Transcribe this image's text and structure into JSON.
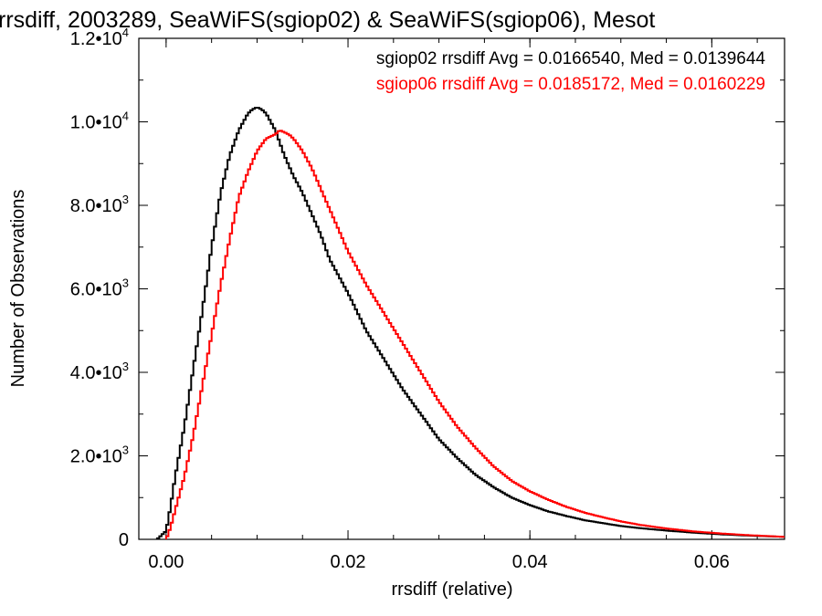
{
  "chart_data": {
    "type": "line",
    "title": "rrsdiff, 2003289, SeaWiFS(sgiop02) & SeaWiFS(sgiop06), Mesot",
    "xlabel": "rrsdiff (relative)",
    "ylabel": "Number of Observations",
    "xlim": [
      -0.003,
      0.068
    ],
    "ylim": [
      0,
      12000
    ],
    "x_ticks": [
      {
        "value": 0.0,
        "label": "0.00"
      },
      {
        "value": 0.02,
        "label": "0.02"
      },
      {
        "value": 0.04,
        "label": "0.04"
      },
      {
        "value": 0.06,
        "label": "0.06"
      }
    ],
    "y_ticks": [
      {
        "value": 0,
        "mant": "0",
        "exp": ""
      },
      {
        "value": 2000,
        "mant": "2.0•10",
        "exp": "3"
      },
      {
        "value": 4000,
        "mant": "4.0•10",
        "exp": "3"
      },
      {
        "value": 6000,
        "mant": "6.0•10",
        "exp": "3"
      },
      {
        "value": 8000,
        "mant": "8.0•10",
        "exp": "3"
      },
      {
        "value": 10000,
        "mant": "1.0•10",
        "exp": "4"
      },
      {
        "value": 12000,
        "mant": "1.2•10",
        "exp": "4"
      }
    ],
    "grid": false,
    "legend_position": "top-right",
    "series": [
      {
        "name": "sgiop02 rrsdiff Avg = 0.0166540, Med = 0.0139644",
        "color": "#000000",
        "x": [
          -0.001,
          0.0,
          0.0005,
          0.001,
          0.002,
          0.003,
          0.004,
          0.005,
          0.006,
          0.007,
          0.008,
          0.009,
          0.0095,
          0.01,
          0.0105,
          0.011,
          0.012,
          0.013,
          0.014,
          0.015,
          0.016,
          0.017,
          0.018,
          0.019,
          0.02,
          0.022,
          0.024,
          0.026,
          0.028,
          0.03,
          0.032,
          0.034,
          0.036,
          0.038,
          0.04,
          0.042,
          0.044,
          0.046,
          0.048,
          0.05,
          0.052,
          0.055,
          0.058,
          0.061,
          0.064,
          0.068
        ],
        "y": [
          0,
          200,
          800,
          1500,
          2700,
          4100,
          5500,
          7000,
          8300,
          9200,
          9800,
          10200,
          10300,
          10350,
          10300,
          10200,
          9800,
          9200,
          8700,
          8300,
          7800,
          7300,
          6700,
          6300,
          5900,
          5000,
          4300,
          3600,
          3000,
          2400,
          1950,
          1550,
          1250,
          1000,
          820,
          670,
          560,
          460,
          390,
          320,
          270,
          210,
          160,
          120,
          90,
          60
        ]
      },
      {
        "name": "sgiop06 rrsdiff Avg = 0.0185172, Med = 0.0160229",
        "color": "#ff0000",
        "x": [
          0.0,
          0.0005,
          0.001,
          0.002,
          0.003,
          0.004,
          0.005,
          0.006,
          0.007,
          0.008,
          0.009,
          0.01,
          0.011,
          0.012,
          0.0125,
          0.013,
          0.0135,
          0.014,
          0.015,
          0.016,
          0.017,
          0.018,
          0.019,
          0.02,
          0.021,
          0.022,
          0.024,
          0.026,
          0.028,
          0.03,
          0.032,
          0.034,
          0.036,
          0.038,
          0.04,
          0.042,
          0.044,
          0.046,
          0.048,
          0.05,
          0.052,
          0.055,
          0.058,
          0.061,
          0.064,
          0.068
        ],
        "y": [
          0,
          300,
          700,
          1500,
          2500,
          3700,
          4900,
          6100,
          7200,
          8200,
          8800,
          9300,
          9600,
          9700,
          9800,
          9750,
          9700,
          9600,
          9300,
          8900,
          8400,
          7900,
          7400,
          6900,
          6500,
          6100,
          5400,
          4700,
          4000,
          3300,
          2700,
          2200,
          1750,
          1400,
          1150,
          950,
          780,
          640,
          530,
          430,
          350,
          260,
          190,
          140,
          100,
          60
        ]
      }
    ]
  }
}
